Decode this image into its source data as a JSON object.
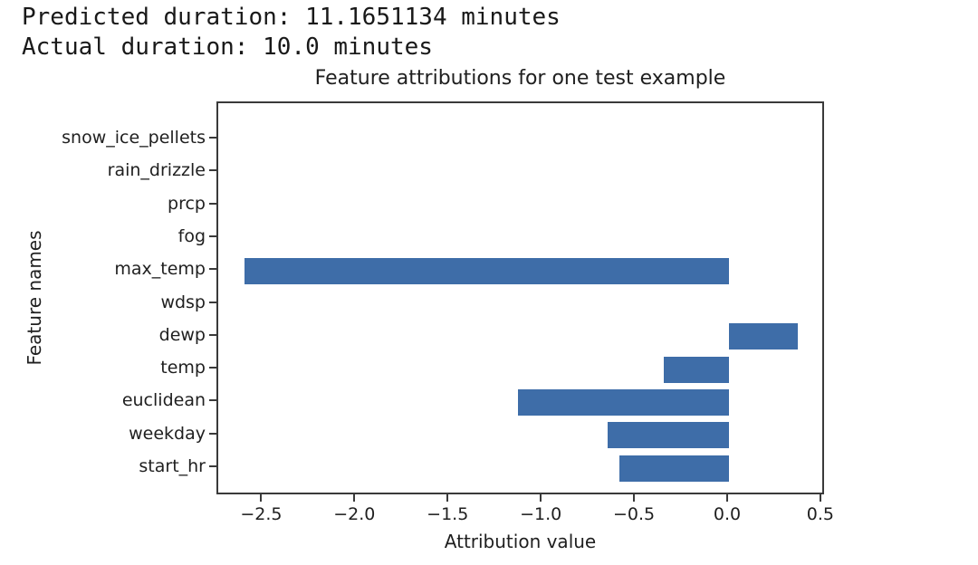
{
  "header": {
    "predicted": "Predicted duration: 11.1651134 minutes",
    "actual": "Actual duration: 10.0 minutes"
  },
  "chart_data": {
    "type": "bar",
    "orientation": "horizontal",
    "title": "Feature attributions for one test example",
    "xlabel": "Attribution value",
    "ylabel": "Feature names",
    "categories": [
      "snow_ice_pellets",
      "rain_drizzle",
      "prcp",
      "fog",
      "max_temp",
      "wdsp",
      "dewp",
      "temp",
      "euclidean",
      "weekday",
      "start_hr"
    ],
    "values": [
      0,
      0,
      0,
      0,
      -2.6,
      0,
      0.37,
      -0.35,
      -1.13,
      -0.65,
      -0.59
    ],
    "xlim": [
      -2.74,
      0.52
    ],
    "xticks": [
      -2.5,
      -2.0,
      -1.5,
      -1.0,
      -0.5,
      0.0,
      0.5
    ],
    "xtick_labels": [
      "−2.5",
      "−2.0",
      "−1.5",
      "−1.0",
      "−0.5",
      "0.0",
      "0.5"
    ],
    "bar_color": "#3E6DA8",
    "grid": false,
    "legend": "none"
  }
}
